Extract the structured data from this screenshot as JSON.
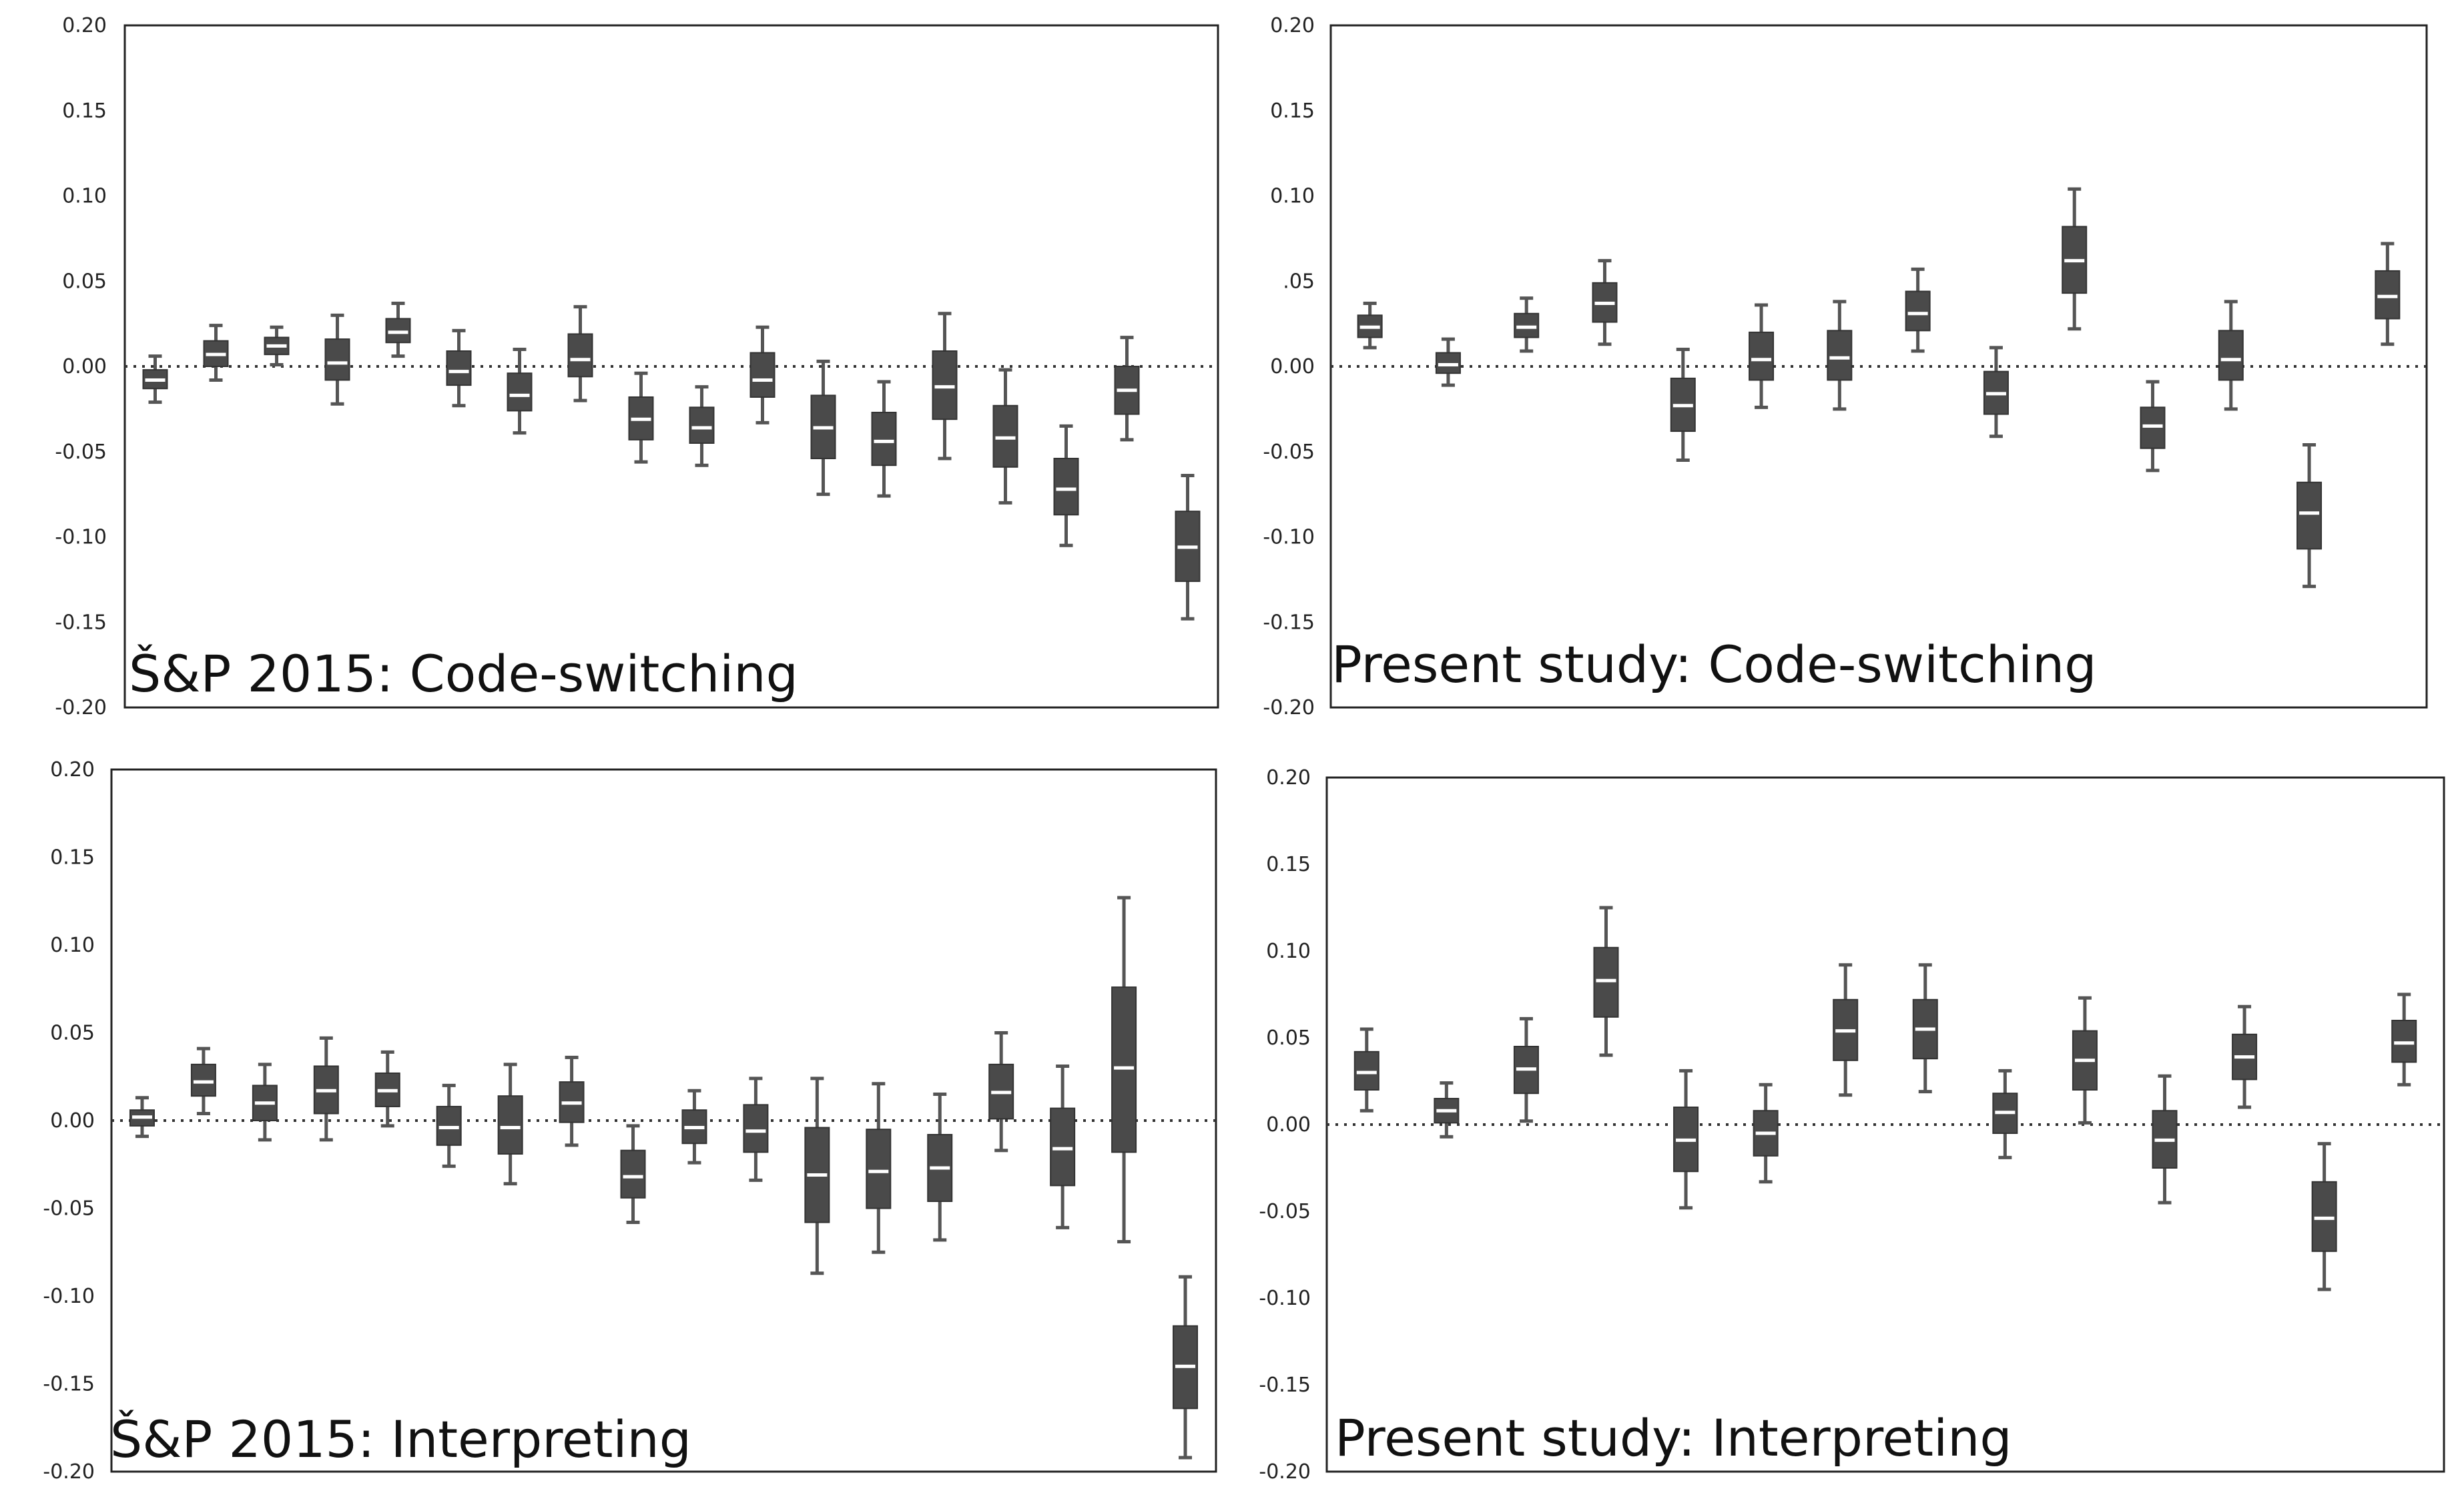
{
  "colors": {
    "box": "#4a4a4a",
    "median": "#ffffff",
    "whisker": "#555555",
    "frame": "#222222",
    "zero_line": "#333333"
  },
  "chart_data": [
    {
      "type": "box",
      "title": "Š&P 2015: Code-switching",
      "ylim": [
        -0.2,
        0.2
      ],
      "ytick_labels": [
        "0.20",
        "0.15",
        "0.10",
        "0.05",
        "0.00",
        "-0.05",
        "-0.10",
        "-0.15",
        "-0.20"
      ],
      "reference_line": 0.0,
      "boxes": [
        {
          "whisker_low": -0.021,
          "q1": -0.013,
          "median": -0.008,
          "q3": -0.002,
          "whisker_high": 0.006
        },
        {
          "whisker_low": -0.008,
          "q1": 0.0,
          "median": 0.007,
          "q3": 0.015,
          "whisker_high": 0.024
        },
        {
          "whisker_low": 0.001,
          "q1": 0.007,
          "median": 0.012,
          "q3": 0.017,
          "whisker_high": 0.023
        },
        {
          "whisker_low": -0.022,
          "q1": -0.008,
          "median": 0.002,
          "q3": 0.016,
          "whisker_high": 0.03
        },
        {
          "whisker_low": 0.006,
          "q1": 0.014,
          "median": 0.02,
          "q3": 0.028,
          "whisker_high": 0.037
        },
        {
          "whisker_low": -0.023,
          "q1": -0.011,
          "median": -0.003,
          "q3": 0.009,
          "whisker_high": 0.021
        },
        {
          "whisker_low": -0.039,
          "q1": -0.026,
          "median": -0.017,
          "q3": -0.004,
          "whisker_high": 0.01
        },
        {
          "whisker_low": -0.02,
          "q1": -0.006,
          "median": 0.004,
          "q3": 0.019,
          "whisker_high": 0.035
        },
        {
          "whisker_low": -0.056,
          "q1": -0.043,
          "median": -0.031,
          "q3": -0.018,
          "whisker_high": -0.004
        },
        {
          "whisker_low": -0.058,
          "q1": -0.045,
          "median": -0.036,
          "q3": -0.024,
          "whisker_high": -0.012
        },
        {
          "whisker_low": -0.033,
          "q1": -0.018,
          "median": -0.008,
          "q3": 0.008,
          "whisker_high": 0.023
        },
        {
          "whisker_low": -0.075,
          "q1": -0.054,
          "median": -0.036,
          "q3": -0.017,
          "whisker_high": 0.003
        },
        {
          "whisker_low": -0.076,
          "q1": -0.058,
          "median": -0.044,
          "q3": -0.027,
          "whisker_high": -0.009
        },
        {
          "whisker_low": -0.054,
          "q1": -0.031,
          "median": -0.012,
          "q3": 0.009,
          "whisker_high": 0.031
        },
        {
          "whisker_low": -0.08,
          "q1": -0.059,
          "median": -0.042,
          "q3": -0.023,
          "whisker_high": -0.002
        },
        {
          "whisker_low": -0.105,
          "q1": -0.087,
          "median": -0.072,
          "q3": -0.054,
          "whisker_high": -0.035
        },
        {
          "whisker_low": -0.043,
          "q1": -0.028,
          "median": -0.014,
          "q3": 0.0,
          "whisker_high": 0.017
        },
        {
          "whisker_low": -0.148,
          "q1": -0.126,
          "median": -0.106,
          "q3": -0.085,
          "whisker_high": -0.064
        }
      ]
    },
    {
      "type": "box",
      "title": "Present study: Code-switching",
      "ylim": [
        -0.2,
        0.2
      ],
      "ytick_labels": [
        "0.20",
        "0.15",
        "0.10",
        ".05",
        "0.00",
        "-0.05",
        "-0.10",
        "-0.15",
        "-0.20"
      ],
      "reference_line": 0.0,
      "boxes": [
        {
          "whisker_low": 0.011,
          "q1": 0.017,
          "median": 0.023,
          "q3": 0.03,
          "whisker_high": 0.037
        },
        {
          "whisker_low": -0.011,
          "q1": -0.004,
          "median": 0.001,
          "q3": 0.008,
          "whisker_high": 0.016
        },
        {
          "whisker_low": 0.009,
          "q1": 0.017,
          "median": 0.023,
          "q3": 0.031,
          "whisker_high": 0.04
        },
        {
          "whisker_low": 0.013,
          "q1": 0.026,
          "median": 0.037,
          "q3": 0.049,
          "whisker_high": 0.062
        },
        {
          "whisker_low": -0.055,
          "q1": -0.038,
          "median": -0.023,
          "q3": -0.007,
          "whisker_high": 0.01
        },
        {
          "whisker_low": -0.024,
          "q1": -0.008,
          "median": 0.004,
          "q3": 0.02,
          "whisker_high": 0.036
        },
        {
          "whisker_low": -0.025,
          "q1": -0.008,
          "median": 0.005,
          "q3": 0.021,
          "whisker_high": 0.038
        },
        {
          "whisker_low": 0.009,
          "q1": 0.021,
          "median": 0.031,
          "q3": 0.044,
          "whisker_high": 0.057
        },
        {
          "whisker_low": -0.041,
          "q1": -0.028,
          "median": -0.016,
          "q3": -0.003,
          "whisker_high": 0.011
        },
        {
          "whisker_low": 0.022,
          "q1": 0.043,
          "median": 0.062,
          "q3": 0.082,
          "whisker_high": 0.104
        },
        {
          "whisker_low": -0.061,
          "q1": -0.048,
          "median": -0.035,
          "q3": -0.024,
          "whisker_high": -0.009
        },
        {
          "whisker_low": -0.025,
          "q1": -0.008,
          "median": 0.004,
          "q3": 0.021,
          "whisker_high": 0.038
        },
        {
          "whisker_low": -0.129,
          "q1": -0.107,
          "median": -0.086,
          "q3": -0.068,
          "whisker_high": -0.046
        },
        {
          "whisker_low": 0.013,
          "q1": 0.028,
          "median": 0.041,
          "q3": 0.056,
          "whisker_high": 0.072
        }
      ]
    },
    {
      "type": "box",
      "title": "Š&P 2015: Interpreting",
      "ylim": [
        -0.2,
        0.2
      ],
      "ytick_labels": [
        "0.20",
        "0.15",
        "0.10",
        "0.05",
        "0.00",
        "-0.05",
        "-0.10",
        "-0.15",
        "-0.20"
      ],
      "reference_line": 0.0,
      "boxes": [
        {
          "whisker_low": -0.009,
          "q1": -0.003,
          "median": 0.002,
          "q3": 0.006,
          "whisker_high": 0.013
        },
        {
          "whisker_low": 0.004,
          "q1": 0.014,
          "median": 0.022,
          "q3": 0.032,
          "whisker_high": 0.041
        },
        {
          "whisker_low": -0.011,
          "q1": 0.0,
          "median": 0.01,
          "q3": 0.02,
          "whisker_high": 0.032
        },
        {
          "whisker_low": -0.011,
          "q1": 0.004,
          "median": 0.017,
          "q3": 0.031,
          "whisker_high": 0.047
        },
        {
          "whisker_low": -0.003,
          "q1": 0.008,
          "median": 0.017,
          "q3": 0.027,
          "whisker_high": 0.039
        },
        {
          "whisker_low": -0.026,
          "q1": -0.014,
          "median": -0.004,
          "q3": 0.008,
          "whisker_high": 0.02
        },
        {
          "whisker_low": -0.036,
          "q1": -0.019,
          "median": -0.004,
          "q3": 0.014,
          "whisker_high": 0.032
        },
        {
          "whisker_low": -0.014,
          "q1": -0.001,
          "median": 0.01,
          "q3": 0.022,
          "whisker_high": 0.036
        },
        {
          "whisker_low": -0.058,
          "q1": -0.044,
          "median": -0.032,
          "q3": -0.017,
          "whisker_high": -0.003
        },
        {
          "whisker_low": -0.024,
          "q1": -0.013,
          "median": -0.004,
          "q3": 0.006,
          "whisker_high": 0.017
        },
        {
          "whisker_low": -0.034,
          "q1": -0.018,
          "median": -0.006,
          "q3": 0.009,
          "whisker_high": 0.024
        },
        {
          "whisker_low": -0.087,
          "q1": -0.058,
          "median": -0.031,
          "q3": -0.004,
          "whisker_high": 0.024
        },
        {
          "whisker_low": -0.075,
          "q1": -0.05,
          "median": -0.029,
          "q3": -0.005,
          "whisker_high": 0.021
        },
        {
          "whisker_low": -0.068,
          "q1": -0.046,
          "median": -0.027,
          "q3": -0.008,
          "whisker_high": 0.015
        },
        {
          "whisker_low": -0.017,
          "q1": 0.001,
          "median": 0.016,
          "q3": 0.032,
          "whisker_high": 0.05
        },
        {
          "whisker_low": -0.061,
          "q1": -0.037,
          "median": -0.016,
          "q3": 0.007,
          "whisker_high": 0.031
        },
        {
          "whisker_low": -0.069,
          "q1": -0.018,
          "median": 0.03,
          "q3": 0.076,
          "whisker_high": 0.127
        },
        {
          "whisker_low": -0.192,
          "q1": -0.164,
          "median": -0.14,
          "q3": -0.117,
          "whisker_high": -0.089
        }
      ]
    },
    {
      "type": "box",
      "title": "Present study: Interpreting",
      "ylim": [
        -0.2,
        0.2
      ],
      "ytick_labels": [
        "0.20",
        "0.15",
        "0.10",
        "0.05",
        "0.00",
        "-0.05",
        "-0.10",
        "-0.15",
        "-0.20"
      ],
      "reference_line": 0.0,
      "boxes": [
        {
          "whisker_low": 0.008,
          "q1": 0.02,
          "median": 0.03,
          "q3": 0.042,
          "whisker_high": 0.055
        },
        {
          "whisker_low": -0.007,
          "q1": 0.001,
          "median": 0.008,
          "q3": 0.015,
          "whisker_high": 0.024
        },
        {
          "whisker_low": 0.002,
          "q1": 0.018,
          "median": 0.032,
          "q3": 0.045,
          "whisker_high": 0.061
        },
        {
          "whisker_low": 0.04,
          "q1": 0.062,
          "median": 0.083,
          "q3": 0.102,
          "whisker_high": 0.125
        },
        {
          "whisker_low": -0.048,
          "q1": -0.027,
          "median": -0.009,
          "q3": 0.01,
          "whisker_high": 0.031
        },
        {
          "whisker_low": -0.033,
          "q1": -0.018,
          "median": -0.005,
          "q3": 0.008,
          "whisker_high": 0.023
        },
        {
          "whisker_low": 0.017,
          "q1": 0.037,
          "median": 0.054,
          "q3": 0.072,
          "whisker_high": 0.092
        },
        {
          "whisker_low": 0.019,
          "q1": 0.038,
          "median": 0.055,
          "q3": 0.072,
          "whisker_high": 0.092
        },
        {
          "whisker_low": -0.019,
          "q1": -0.005,
          "median": 0.007,
          "q3": 0.018,
          "whisker_high": 0.031
        },
        {
          "whisker_low": 0.001,
          "q1": 0.02,
          "median": 0.037,
          "q3": 0.054,
          "whisker_high": 0.073
        },
        {
          "whisker_low": -0.045,
          "q1": -0.025,
          "median": -0.009,
          "q3": 0.008,
          "whisker_high": 0.028
        },
        {
          "whisker_low": 0.01,
          "q1": 0.026,
          "median": 0.039,
          "q3": 0.052,
          "whisker_high": 0.068
        },
        {
          "whisker_low": -0.095,
          "q1": -0.073,
          "median": -0.054,
          "q3": -0.033,
          "whisker_high": -0.011
        },
        {
          "whisker_low": 0.023,
          "q1": 0.036,
          "median": 0.047,
          "q3": 0.06,
          "whisker_high": 0.075
        }
      ]
    }
  ]
}
